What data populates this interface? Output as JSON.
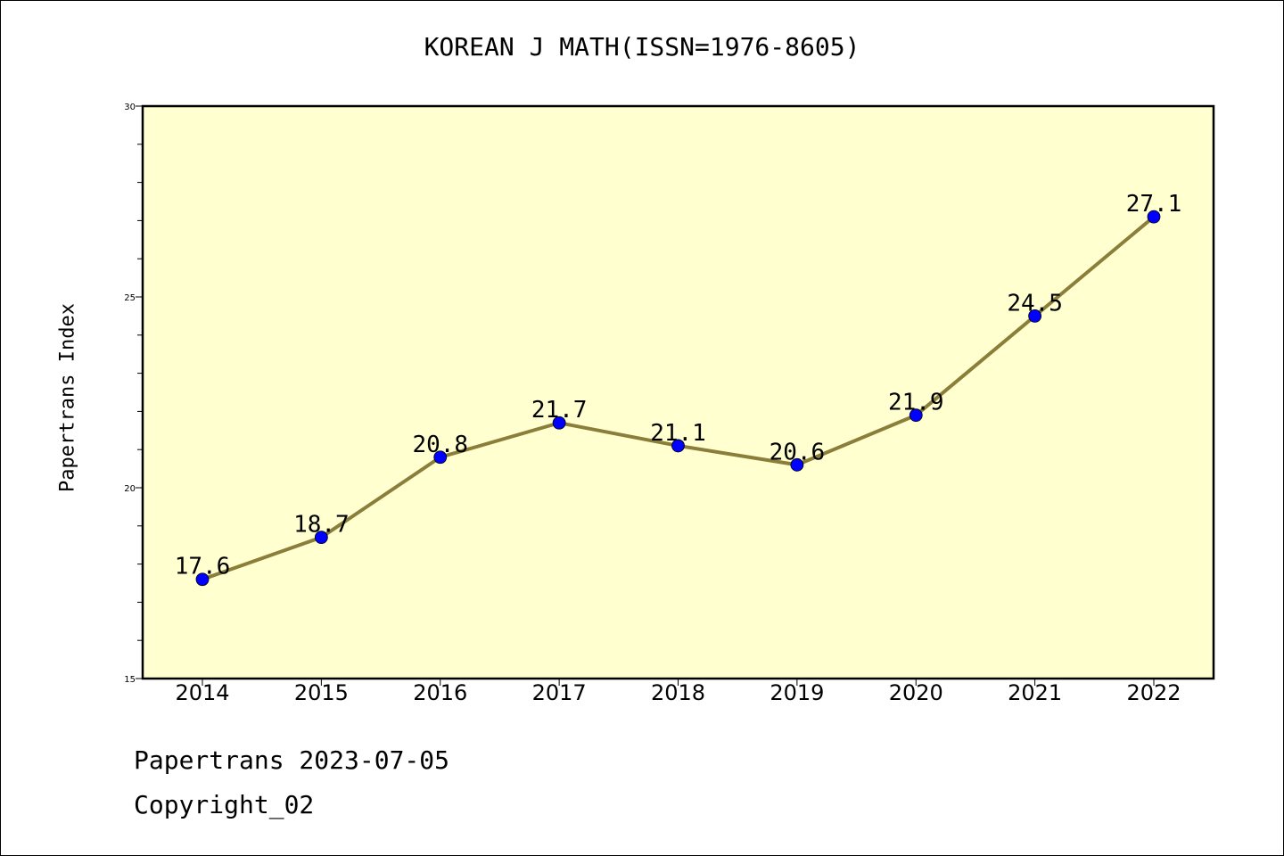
{
  "chart_data": {
    "type": "line",
    "title": "KOREAN J MATH(ISSN=1976-8605)",
    "ylabel": "Papertrans Index",
    "xlabel": "",
    "x": [
      "2014",
      "2015",
      "2016",
      "2017",
      "2018",
      "2019",
      "2020",
      "2021",
      "2022"
    ],
    "series": [
      {
        "values": [
          17.6,
          18.7,
          20.8,
          21.7,
          21.1,
          20.6,
          21.9,
          24.5,
          27.1
        ]
      }
    ],
    "data_labels": [
      "17.6",
      "18.7",
      "20.8",
      "21.7",
      "21.1",
      "20.6",
      "21.9",
      "24.5",
      "27.1"
    ],
    "ylim": [
      15,
      30
    ],
    "yticks": [
      15,
      20,
      25,
      30
    ],
    "ytick_labels": [
      "15",
      "20",
      "25",
      "30"
    ],
    "grid": false,
    "colors": {
      "plot_background": "#ffffd0",
      "line": "#8b7d3a",
      "marker": "#0000ff"
    }
  },
  "footer": {
    "line1": "Papertrans 2023-07-05",
    "line2": "Copyright_02"
  }
}
